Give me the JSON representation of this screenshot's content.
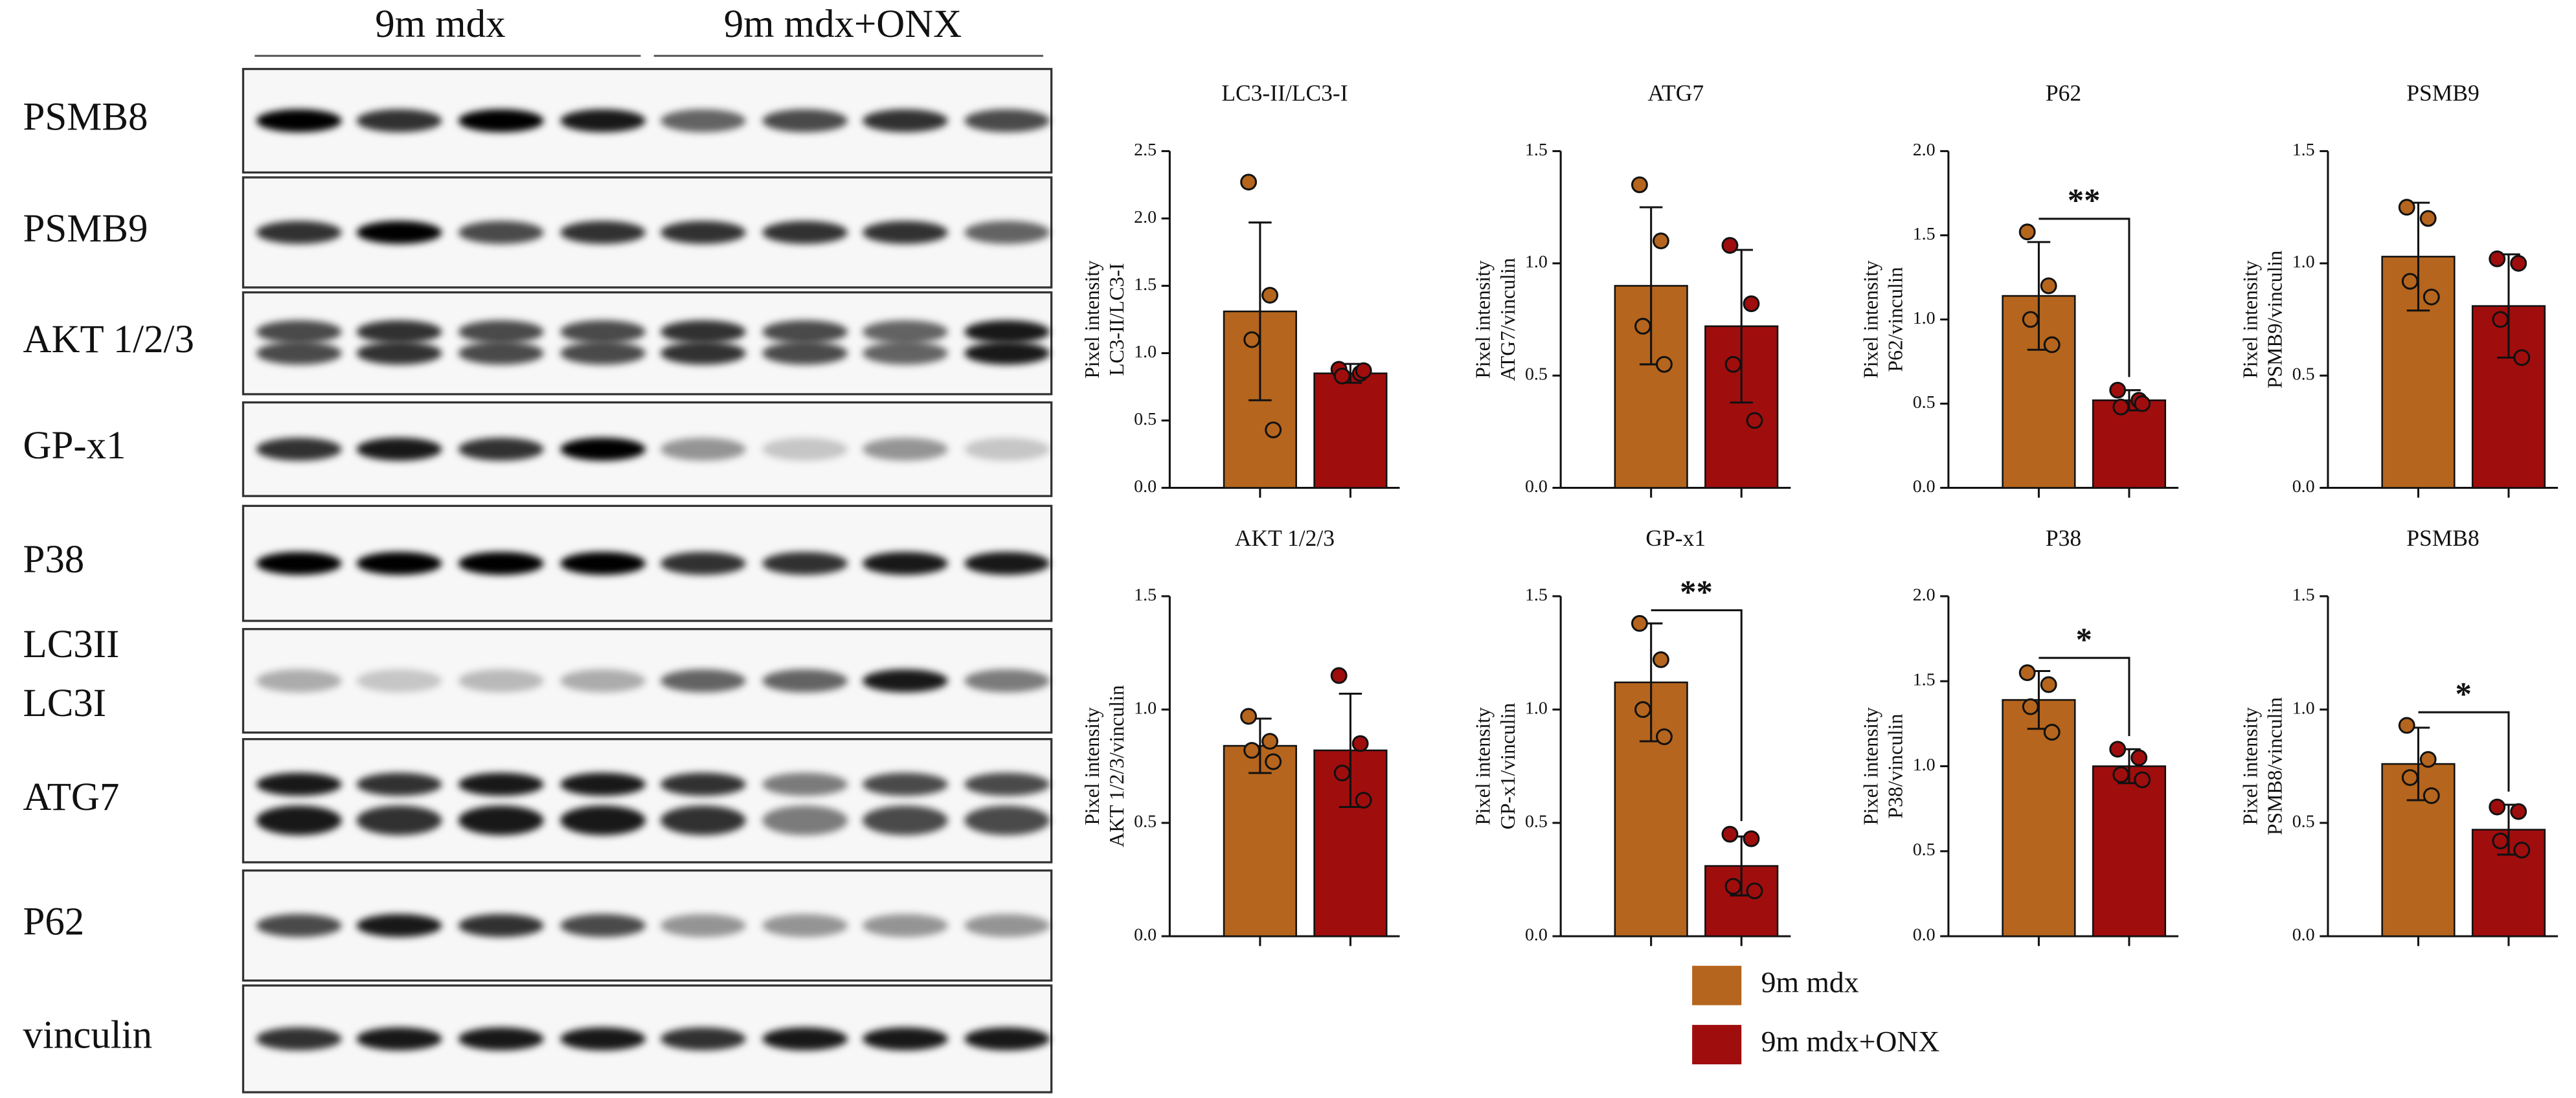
{
  "blot": {
    "groups": [
      "9m mdx",
      "9m mdx+ONX"
    ],
    "rows": [
      [
        "PSMB8"
      ],
      [
        "PSMB9"
      ],
      [
        "AKT 1/2/3"
      ],
      [
        "GP-x1"
      ],
      [
        "P38"
      ],
      [
        "LC3II",
        "LC3I"
      ],
      [
        "ATG7"
      ],
      [
        "P62"
      ],
      [
        "vinculin"
      ]
    ]
  },
  "legend": {
    "items": [
      {
        "name": "9m mdx",
        "color": "#b5651d"
      },
      {
        "name": "9m mdx+ONX",
        "color": "#a00d0d"
      }
    ]
  },
  "chart_data": [
    {
      "type": "bar",
      "title": "LC3-II/LC3-I",
      "ylabel": [
        "Pixel intensity",
        "LC3-II/LC3-I"
      ],
      "categories": [
        null,
        null
      ],
      "colors": [
        "#b5651d",
        "#a00d0d"
      ],
      "values": [
        1.31,
        0.85
      ],
      "errors": [
        0.66,
        0.07
      ],
      "points": [
        [
          2.27,
          1.43,
          1.1,
          0.43
        ],
        [
          0.88,
          0.85,
          0.83,
          0.87
        ]
      ],
      "ylim": [
        0,
        2.5
      ],
      "yticks": [
        {
          "value": 0,
          "label": "0.0"
        },
        0.5,
        {
          "value": 1,
          "label": "1.0"
        },
        1.5,
        {
          "value": 2,
          "label": "2.0"
        },
        2.5
      ]
    },
    {
      "type": "bar",
      "title": "ATG7",
      "ylabel": [
        "Pixel intensity",
        "ATG7/vinculin"
      ],
      "categories": [
        null,
        null
      ],
      "colors": [
        "#b5651d",
        "#a00d0d"
      ],
      "values": [
        0.9,
        0.72
      ],
      "errors": [
        0.35,
        0.34
      ],
      "points": [
        [
          1.35,
          1.1,
          0.72,
          0.55
        ],
        [
          1.08,
          0.82,
          0.55,
          0.3
        ]
      ],
      "ylim": [
        0,
        1.5
      ],
      "yticks": [
        {
          "value": 0,
          "label": "0.0"
        },
        0.5,
        {
          "value": 1,
          "label": "1.0"
        },
        1.5
      ]
    },
    {
      "type": "bar",
      "title": "P62",
      "ylabel": [
        "Pixel intensity",
        "P62/vinculin"
      ],
      "categories": [
        null,
        null
      ],
      "colors": [
        "#b5651d",
        "#a00d0d"
      ],
      "values": [
        1.14,
        0.52
      ],
      "errors": [
        0.32,
        0.06
      ],
      "points": [
        [
          1.52,
          1.2,
          1.0,
          0.85
        ],
        [
          0.58,
          0.52,
          0.48,
          0.5
        ]
      ],
      "annotation": "**",
      "ylim": [
        0,
        2
      ],
      "yticks": [
        {
          "value": 0,
          "label": "0.0"
        },
        0.5,
        {
          "value": 1,
          "label": "1.0"
        },
        1.5,
        {
          "value": 2,
          "label": "2.0"
        }
      ]
    },
    {
      "type": "bar",
      "title": "PSMB9",
      "ylabel": [
        "Pixel intensity",
        "PSMB9/vinculin"
      ],
      "categories": [
        null,
        null
      ],
      "colors": [
        "#b5651d",
        "#a00d0d"
      ],
      "values": [
        1.03,
        0.81
      ],
      "errors": [
        0.24,
        0.23
      ],
      "points": [
        [
          1.25,
          1.2,
          0.92,
          0.85
        ],
        [
          1.02,
          1.0,
          0.75,
          0.58
        ]
      ],
      "ylim": [
        0,
        1.5
      ],
      "yticks": [
        {
          "value": 0,
          "label": "0.0"
        },
        0.5,
        {
          "value": 1,
          "label": "1.0"
        },
        1.5
      ]
    },
    {
      "type": "bar",
      "title": "AKT 1/2/3",
      "ylabel": [
        "Pixel intensity",
        "AKT 1/2/3/vinculin"
      ],
      "categories": [
        null,
        null
      ],
      "colors": [
        "#b5651d",
        "#a00d0d"
      ],
      "values": [
        0.84,
        0.82
      ],
      "errors": [
        0.12,
        0.25
      ],
      "points": [
        [
          0.97,
          0.86,
          0.82,
          0.77
        ],
        [
          1.15,
          0.85,
          0.72,
          0.6
        ]
      ],
      "ylim": [
        0,
        1.5
      ],
      "yticks": [
        {
          "value": 0,
          "label": "0.0"
        },
        0.5,
        {
          "value": 1,
          "label": "1.0"
        },
        1.5
      ]
    },
    {
      "type": "bar",
      "title": "GP-x1",
      "ylabel": [
        "Pixel intensity",
        "GP-x1/vinculin"
      ],
      "categories": [
        null,
        null
      ],
      "colors": [
        "#b5651d",
        "#a00d0d"
      ],
      "values": [
        1.12,
        0.31
      ],
      "errors": [
        0.26,
        0.13
      ],
      "points": [
        [
          1.38,
          1.22,
          1.0,
          0.88
        ],
        [
          0.45,
          0.43,
          0.22,
          0.2
        ]
      ],
      "annotation": "**",
      "ylim": [
        0,
        1.5
      ],
      "yticks": [
        {
          "value": 0,
          "label": "0.0"
        },
        0.5,
        {
          "value": 1,
          "label": "1.0"
        },
        1.5
      ]
    },
    {
      "type": "bar",
      "title": "P38",
      "ylabel": [
        "Pixel intensity",
        "P38/vinculin"
      ],
      "categories": [
        null,
        null
      ],
      "colors": [
        "#b5651d",
        "#a00d0d"
      ],
      "values": [
        1.39,
        1.0
      ],
      "errors": [
        0.17,
        0.1
      ],
      "points": [
        [
          1.55,
          1.48,
          1.35,
          1.2
        ],
        [
          1.1,
          1.05,
          0.95,
          0.92
        ]
      ],
      "annotation": "*",
      "ylim": [
        0,
        2
      ],
      "yticks": [
        {
          "value": 0,
          "label": "0.0"
        },
        0.5,
        {
          "value": 1,
          "label": "1.0"
        },
        1.5,
        {
          "value": 2,
          "label": "2.0"
        }
      ]
    },
    {
      "type": "bar",
      "title": "PSMB8",
      "ylabel": [
        "Pixel intensity",
        "PSMB8/vinculin"
      ],
      "categories": [
        null,
        null
      ],
      "colors": [
        "#b5651d",
        "#a00d0d"
      ],
      "values": [
        0.76,
        0.47
      ],
      "errors": [
        0.16,
        0.11
      ],
      "points": [
        [
          0.93,
          0.78,
          0.7,
          0.62
        ],
        [
          0.57,
          0.55,
          0.42,
          0.38
        ]
      ],
      "annotation": "*",
      "ylim": [
        0,
        1.5
      ],
      "yticks": [
        {
          "value": 0,
          "label": "0.0"
        },
        0.5,
        {
          "value": 1,
          "label": "1.0"
        },
        1.5
      ]
    }
  ]
}
